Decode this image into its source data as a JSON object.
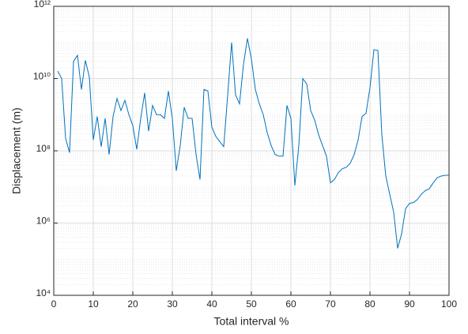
{
  "chart_data": {
    "type": "line",
    "xlabel": "Total interval %",
    "ylabel": "Displacement (m)",
    "x": [
      1,
      2,
      3,
      4,
      5,
      6,
      7,
      8,
      9,
      10,
      11,
      12,
      13,
      14,
      15,
      16,
      17,
      18,
      19,
      20,
      21,
      22,
      23,
      24,
      25,
      26,
      27,
      28,
      29,
      30,
      31,
      32,
      33,
      34,
      35,
      36,
      37,
      38,
      39,
      40,
      41,
      42,
      43,
      44,
      45,
      46,
      47,
      48,
      49,
      50,
      51,
      52,
      53,
      54,
      55,
      56,
      57,
      58,
      59,
      60,
      61,
      62,
      63,
      64,
      65,
      66,
      67,
      68,
      69,
      70,
      71,
      72,
      73,
      74,
      75,
      76,
      77,
      78,
      79,
      80,
      81,
      82,
      83,
      84,
      85,
      86,
      87,
      88,
      89,
      90,
      91,
      92,
      93,
      94,
      95,
      96,
      97,
      98,
      99,
      100
    ],
    "series": [
      {
        "name": "Displacement",
        "color": "#0072bd",
        "values": [
          16000000000.0,
          10000000000.0,
          220000000.0,
          89000000.0,
          30000000000.0,
          44000000000.0,
          5000000000.0,
          32000000000.0,
          11000000000.0,
          200000000.0,
          890000000.0,
          130000000.0,
          790000000.0,
          79000000.0,
          890000000.0,
          2800000000.0,
          1300000000.0,
          2500000000.0,
          1000000000.0,
          500000000.0,
          110000000.0,
          790000000.0,
          4000000000.0,
          350000000.0,
          1800000000.0,
          1000000000.0,
          1000000000.0,
          790000000.0,
          4500000000.0,
          790000000.0,
          28000000.0,
          140000000.0,
          1600000000.0,
          790000000.0,
          790000000.0,
          79000000.0,
          16000000.0,
          5000000000.0,
          4500000000.0,
          450000000.0,
          250000000.0,
          180000000.0,
          130000000.0,
          3500000000.0,
          100000000000.0,
          3500000000.0,
          2000000000.0,
          25000000000.0,
          130000000000.0,
          35000000000.0,
          5000000000.0,
          2000000000.0,
          1000000000.0,
          320000000.0,
          140000000.0,
          79000000.0,
          71000000.0,
          71000000.0,
          1800000000.0,
          790000000.0,
          11000000.0,
          140000000.0,
          10000000000.0,
          7100000000.0,
          1300000000.0,
          710000000.0,
          280000000.0,
          140000000.0,
          71000000.0,
          13000000.0,
          16000000.0,
          25000000.0,
          32000000.0,
          35000000.0,
          45000000.0,
          79000000.0,
          200000000.0,
          890000000.0,
          1100000000.0,
          5600000000.0,
          63000000000.0,
          60000000000.0,
          280000000.0,
          20000000.0,
          6300000.0,
          2000000.0,
          200000.0,
          500000.0,
          2500000.0,
          3500000.0,
          3700000.0,
          4500000.0,
          6300000.0,
          7900000.0,
          8900000.0,
          13000000.0,
          18000000.0,
          20000000.0,
          21000000.0,
          21000000.0
        ]
      }
    ],
    "xlim": [
      0,
      100
    ],
    "xticks": [
      0,
      10,
      20,
      30,
      40,
      50,
      60,
      70,
      80,
      90,
      100
    ],
    "ylim": [
      10000,
      1000000000000.0
    ],
    "yticks": [
      {
        "value": 10000,
        "label": "10⁴"
      },
      {
        "value": 1000000,
        "label": "10⁶"
      },
      {
        "value": 100000000,
        "label": "10⁸"
      },
      {
        "value": 10000000000,
        "label": "10¹⁰"
      },
      {
        "value": 1000000000000,
        "label": "10¹²"
      }
    ],
    "log_y": true,
    "grid": true,
    "minor_grid": true
  }
}
